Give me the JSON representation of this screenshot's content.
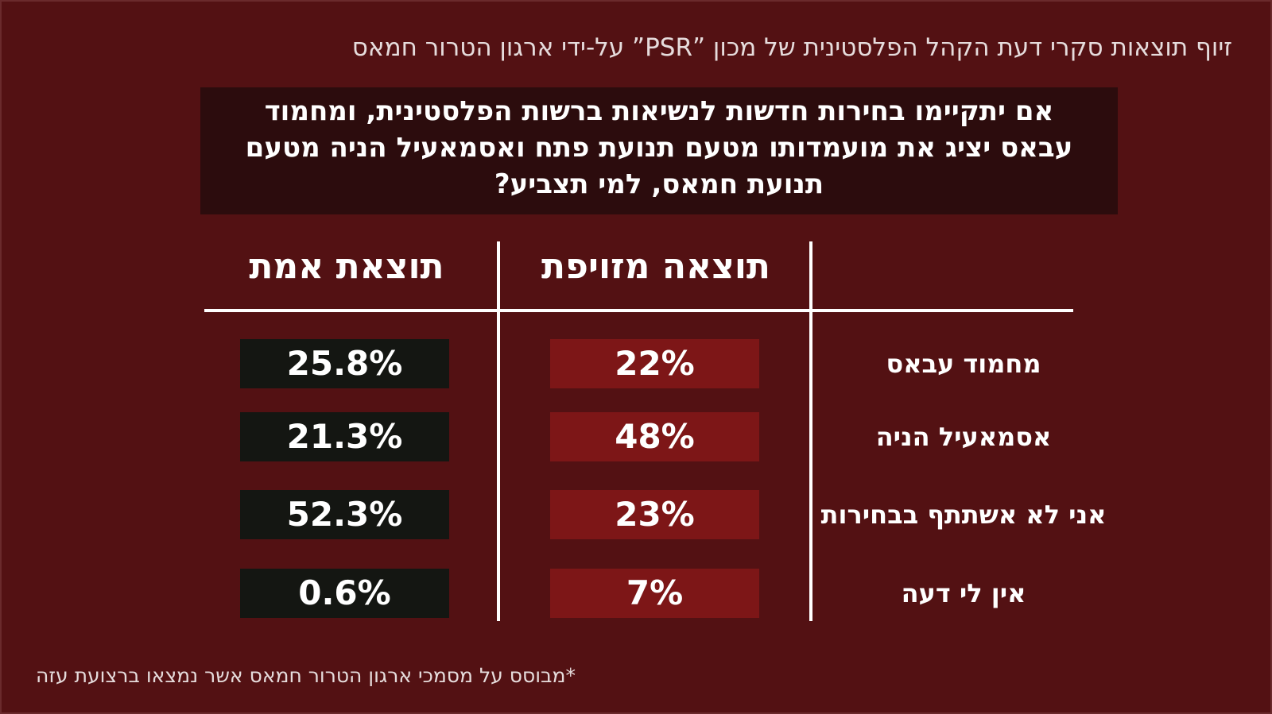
{
  "header": {
    "title": "זיוף תוצאות סקרי דעת הקהל הפלסטינית של מכון ”PSR” על-ידי ארגון הטרור חמאס"
  },
  "question": {
    "lines": [
      "אם יתקיימו בחירות חדשות לנשיאות ברשות הפלסטינית, ומחמוד",
      "עבאס יציג את מועמדותו מטעם תנועת פתח ואסמאעיל הניה מטעם",
      "תנועת חמאס, למי תצביע?"
    ]
  },
  "table": {
    "header_real": "תוצאת אמת",
    "header_fake": "תוצאה מזויפת",
    "rows": [
      {
        "label": "מחמוד עבאס",
        "fake": "22%",
        "real": "25.8%"
      },
      {
        "label": "אסמאעיל הניה",
        "fake": "48%",
        "real": "21.3%"
      },
      {
        "label": "אני לא אשתתף בבחירות",
        "fake": "23%",
        "real": "52.3%"
      },
      {
        "label": "אין לי דעה",
        "fake": "7%",
        "real": "0.6%"
      }
    ]
  },
  "footnote": "*מבוסס על מסמכי ארגון הטרור חמאס אשר נמצאו ברצועת עזה"
}
